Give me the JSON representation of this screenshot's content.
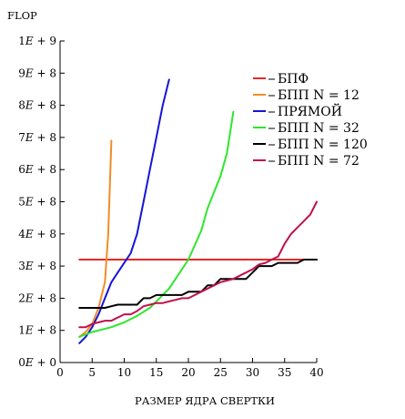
{
  "chart_data": {
    "type": "line",
    "title": "",
    "ylabel": "FLOP",
    "xlabel": "РАЗМЕР ЯДРА СВЕРТКИ",
    "xlim": [
      0,
      40
    ],
    "ylim": [
      0,
      1000000000
    ],
    "x_ticks": [
      0,
      5,
      10,
      15,
      20,
      25,
      30,
      35,
      40
    ],
    "y_ticks": [
      {
        "value": 0,
        "label": "0E + 0"
      },
      {
        "value": 100000000,
        "label": "1E + 8"
      },
      {
        "value": 200000000,
        "label": "2E + 8"
      },
      {
        "value": 300000000,
        "label": "3E + 8"
      },
      {
        "value": 400000000,
        "label": "4E + 8"
      },
      {
        "value": 500000000,
        "label": "5E + 8"
      },
      {
        "value": 600000000,
        "label": "6E + 8"
      },
      {
        "value": 700000000,
        "label": "7E + 8"
      },
      {
        "value": 800000000,
        "label": "8E + 8"
      },
      {
        "value": 900000000,
        "label": "9E + 8"
      },
      {
        "value": 1000000000,
        "label": "1E + 9"
      }
    ],
    "grid": false,
    "legend_position": "right",
    "series": [
      {
        "name": "БПФ",
        "color": "#e8292b",
        "points": [
          [
            3,
            320000000
          ],
          [
            40,
            320000000
          ]
        ]
      },
      {
        "name": "БПП N = 12",
        "color": "#f28c28",
        "points": [
          [
            3,
            80000000
          ],
          [
            4,
            95000000
          ],
          [
            5,
            120000000
          ],
          [
            6,
            170000000
          ],
          [
            7,
            250000000
          ],
          [
            7.5,
            400000000
          ],
          [
            8,
            690000000
          ]
        ]
      },
      {
        "name": "ПРЯМОЙ",
        "color": "#1515d6",
        "points": [
          [
            3,
            60000000
          ],
          [
            4,
            80000000
          ],
          [
            5,
            110000000
          ],
          [
            6,
            150000000
          ],
          [
            7,
            200000000
          ],
          [
            8,
            250000000
          ],
          [
            9,
            280000000
          ],
          [
            10,
            310000000
          ],
          [
            11,
            340000000
          ],
          [
            12,
            400000000
          ],
          [
            13,
            500000000
          ],
          [
            14,
            600000000
          ],
          [
            15,
            700000000
          ],
          [
            16,
            800000000
          ],
          [
            17,
            880000000
          ]
        ]
      },
      {
        "name": "БПП N = 32",
        "color": "#2ee62e",
        "points": [
          [
            3,
            80000000
          ],
          [
            5,
            95000000
          ],
          [
            8,
            110000000
          ],
          [
            10,
            125000000
          ],
          [
            12,
            145000000
          ],
          [
            14,
            170000000
          ],
          [
            16,
            210000000
          ],
          [
            17,
            230000000
          ],
          [
            18,
            260000000
          ],
          [
            20,
            320000000
          ],
          [
            22,
            410000000
          ],
          [
            23,
            480000000
          ],
          [
            24,
            530000000
          ],
          [
            25,
            580000000
          ],
          [
            26,
            650000000
          ],
          [
            27,
            780000000
          ]
        ]
      },
      {
        "name": "БПП N = 120",
        "color": "#000000",
        "points": [
          [
            3,
            170000000
          ],
          [
            7,
            170000000
          ],
          [
            8,
            175000000
          ],
          [
            9,
            180000000
          ],
          [
            12,
            180000000
          ],
          [
            13,
            200000000
          ],
          [
            14,
            200000000
          ],
          [
            15,
            210000000
          ],
          [
            16,
            210000000
          ],
          [
            17,
            210000000
          ],
          [
            19,
            210000000
          ],
          [
            20,
            220000000
          ],
          [
            22,
            220000000
          ],
          [
            23,
            240000000
          ],
          [
            24,
            240000000
          ],
          [
            25,
            260000000
          ],
          [
            29,
            260000000
          ],
          [
            30,
            280000000
          ],
          [
            31,
            300000000
          ],
          [
            33,
            300000000
          ],
          [
            34,
            310000000
          ],
          [
            37,
            310000000
          ],
          [
            38,
            320000000
          ],
          [
            40,
            320000000
          ]
        ]
      },
      {
        "name": "БПП N = 72",
        "color": "#c0104c",
        "points": [
          [
            3,
            110000000
          ],
          [
            4,
            110000000
          ],
          [
            5,
            120000000
          ],
          [
            6,
            125000000
          ],
          [
            7,
            130000000
          ],
          [
            8,
            130000000
          ],
          [
            9,
            140000000
          ],
          [
            10,
            150000000
          ],
          [
            11,
            150000000
          ],
          [
            12,
            160000000
          ],
          [
            13,
            175000000
          ],
          [
            14,
            180000000
          ],
          [
            15,
            185000000
          ],
          [
            16,
            185000000
          ],
          [
            17,
            190000000
          ],
          [
            18,
            195000000
          ],
          [
            19,
            200000000
          ],
          [
            20,
            200000000
          ],
          [
            21,
            210000000
          ],
          [
            22,
            220000000
          ],
          [
            23,
            230000000
          ],
          [
            24,
            240000000
          ],
          [
            25,
            250000000
          ],
          [
            26,
            255000000
          ],
          [
            27,
            260000000
          ],
          [
            28,
            270000000
          ],
          [
            29,
            280000000
          ],
          [
            30,
            290000000
          ],
          [
            31,
            305000000
          ],
          [
            32,
            310000000
          ],
          [
            33,
            320000000
          ],
          [
            34,
            330000000
          ],
          [
            35,
            370000000
          ],
          [
            36,
            400000000
          ],
          [
            37,
            420000000
          ],
          [
            38,
            440000000
          ],
          [
            39,
            460000000
          ],
          [
            40,
            500000000
          ]
        ]
      }
    ]
  }
}
